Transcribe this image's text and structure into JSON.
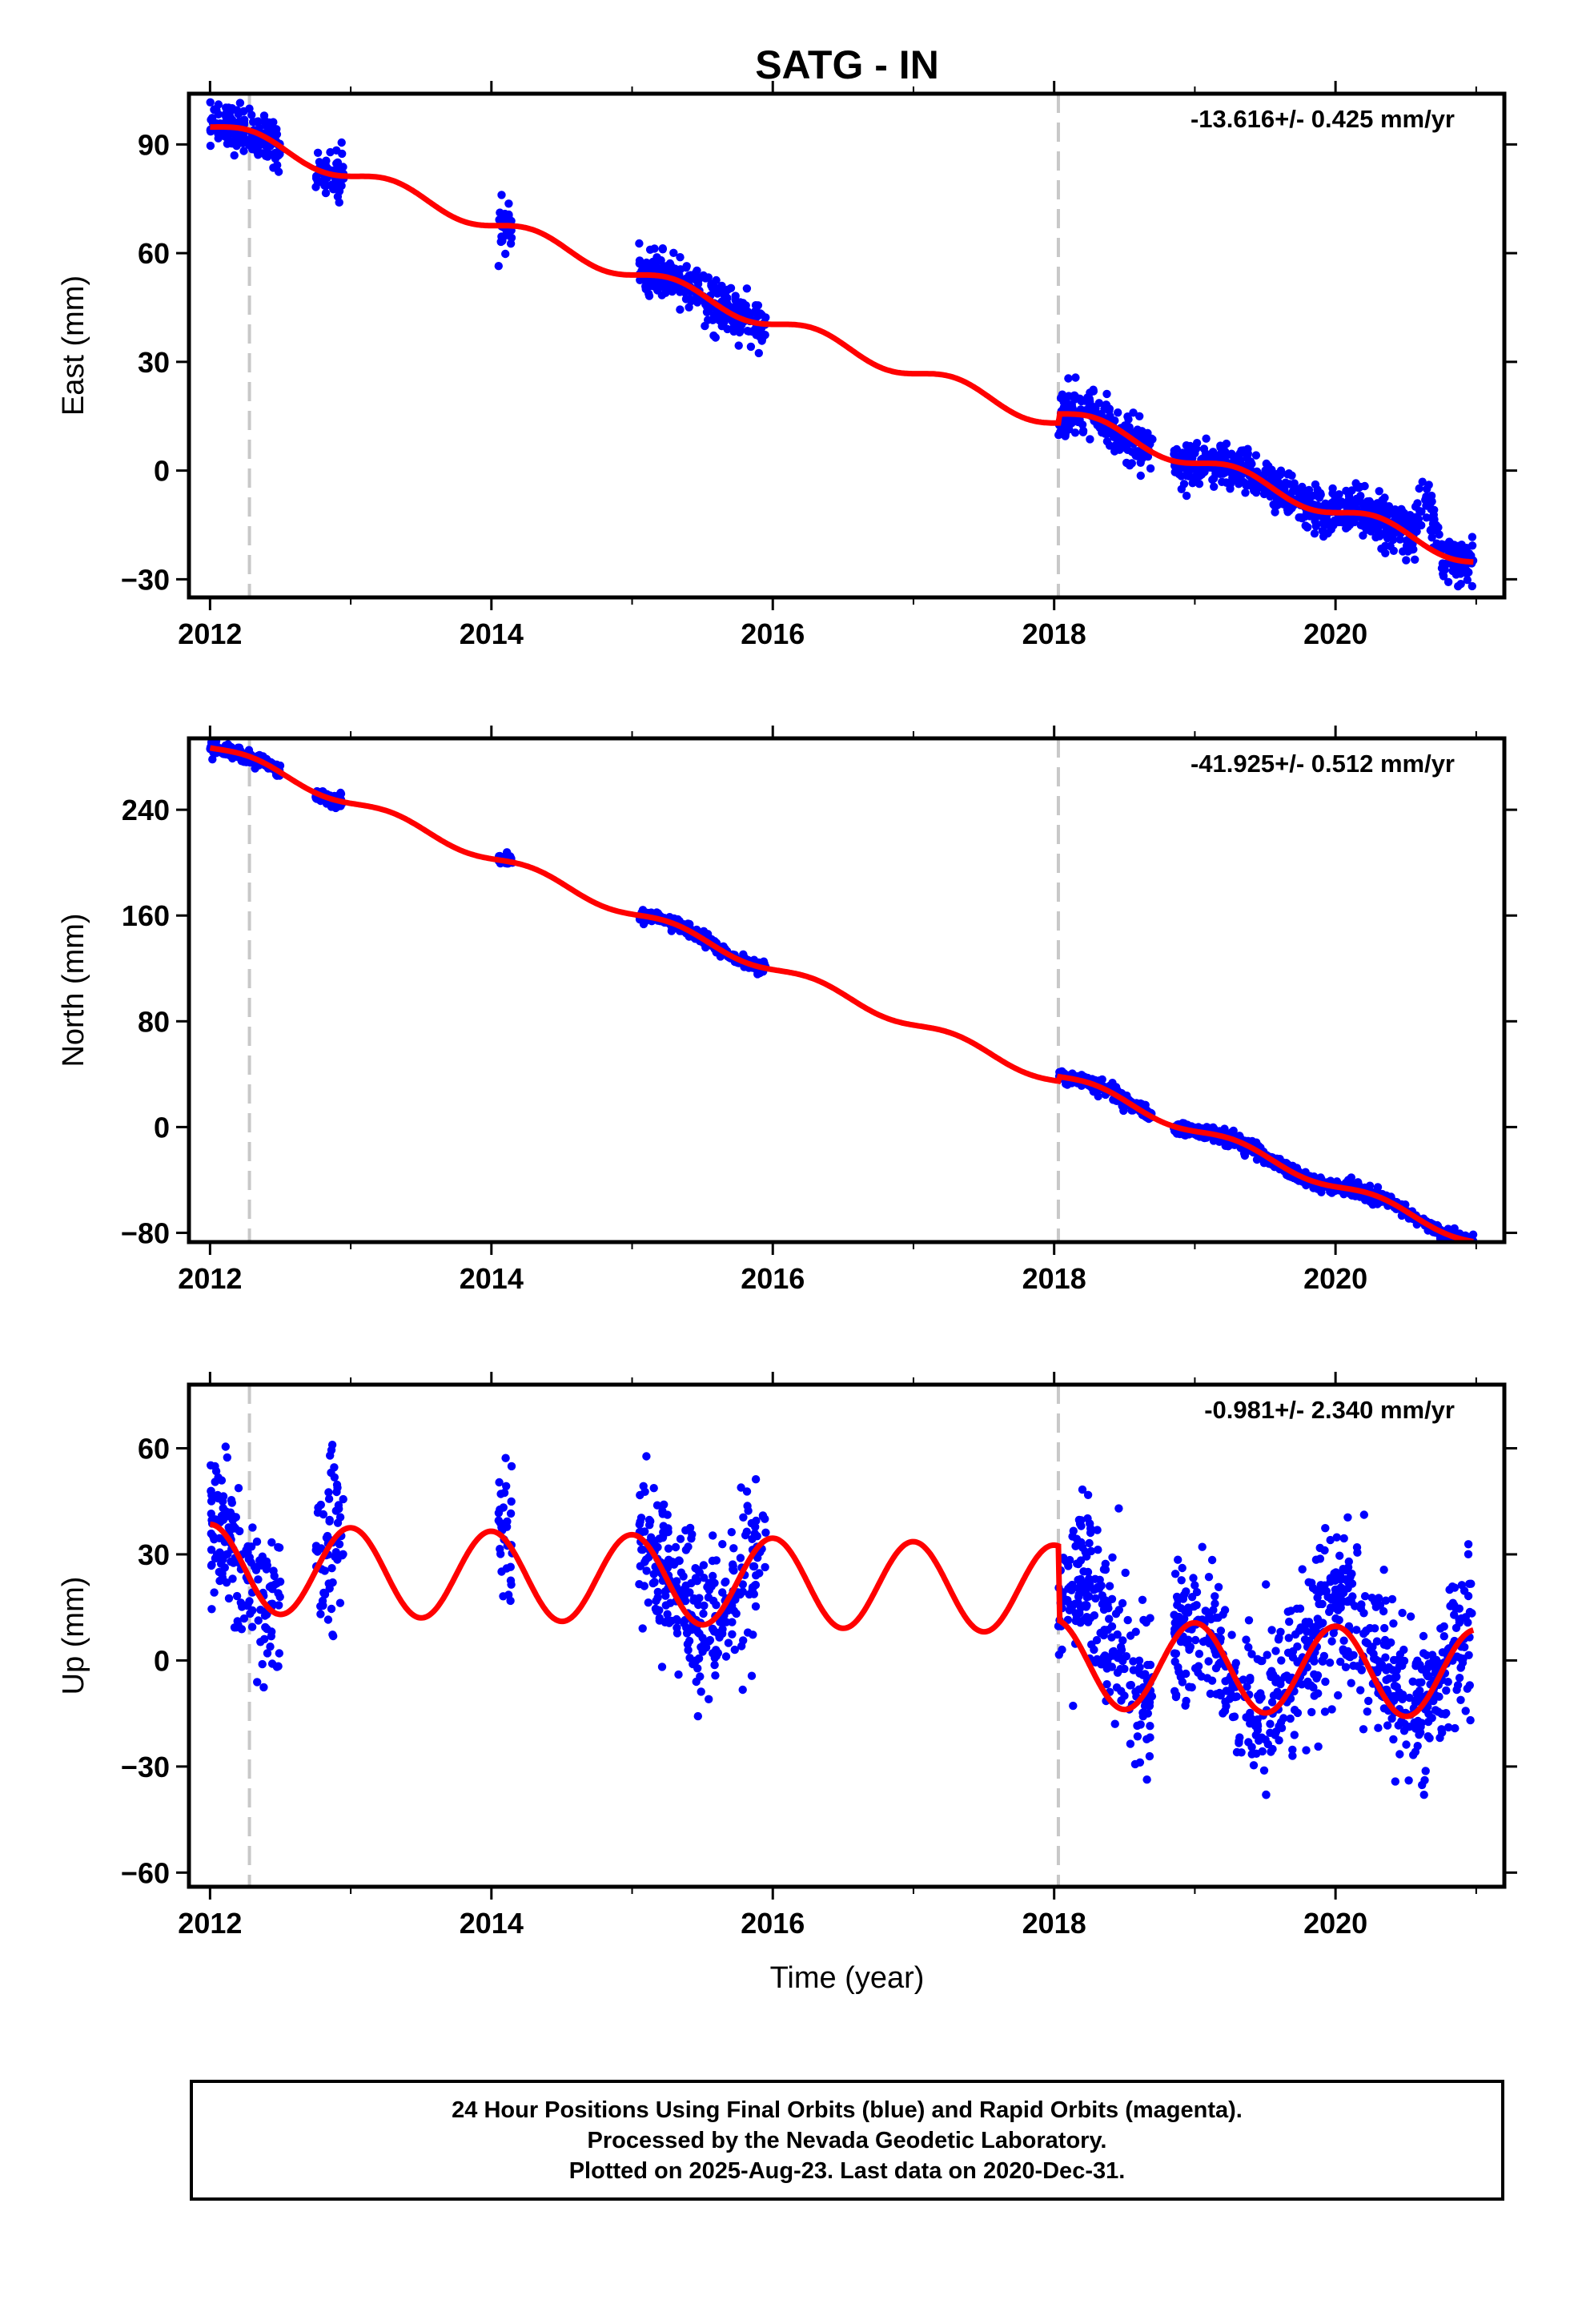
{
  "chart_data": {
    "title": "SATG - IN",
    "xlabel": "Time (year)",
    "x_ticks": [
      2012,
      2014,
      2016,
      2018,
      2020
    ],
    "xlim": [
      2011.85,
      2021.2
    ],
    "equipment_change_years": [
      2012.28,
      2018.03
    ],
    "colors": {
      "data": "#0000ff",
      "model": "#ff0000",
      "equipment_line": "#c8c8c8",
      "frame": "#000000"
    },
    "panels": [
      {
        "name": "east",
        "type": "scatter",
        "ylabel": "East (mm)",
        "rate_label": "-13.616+/- 0.425 mm/yr",
        "ylim": [
          -35,
          104
        ],
        "y_ticks": [
          -30,
          0,
          30,
          60,
          90
        ],
        "y_tick_labels": [
          "−30",
          "0",
          "30",
          "60",
          "90"
        ],
        "model": {
          "intercept": 95.5,
          "rate": -13.616,
          "annual_amp": 2.2,
          "annual_phase": 0.3,
          "offsets": [
            [
              2018.03,
              2.5
            ]
          ]
        },
        "data_segments": [
          [
            2012.0,
            2012.5
          ],
          [
            2012.75,
            2012.95
          ],
          [
            2014.05,
            2014.15
          ],
          [
            2015.05,
            2015.95
          ],
          [
            2018.03,
            2018.7
          ],
          [
            2018.85,
            2020.98
          ]
        ],
        "noise": 3.2,
        "bumps": [
          [
            2020.55,
            2020.75,
            12
          ]
        ]
      },
      {
        "name": "north",
        "type": "scatter",
        "ylabel": "North (mm)",
        "rate_label": "-41.925+/- 0.512 mm/yr",
        "ylim": [
          -87,
          294
        ],
        "y_ticks": [
          -80,
          0,
          80,
          160,
          240
        ],
        "y_tick_labels": [
          "−80",
          "0",
          "80",
          "160",
          "240"
        ],
        "model": {
          "intercept": 288,
          "rate": -41.925,
          "annual_amp": 4.0,
          "annual_phase": 0.3,
          "offsets": [
            [
              2018.03,
              3.5
            ]
          ]
        },
        "data_segments": [
          [
            2012.0,
            2012.5
          ],
          [
            2012.75,
            2012.95
          ],
          [
            2014.05,
            2014.15
          ],
          [
            2015.05,
            2015.95
          ],
          [
            2018.03,
            2018.7
          ],
          [
            2018.85,
            2020.98
          ]
        ],
        "noise": 2.5,
        "bumps": []
      },
      {
        "name": "up",
        "type": "scatter",
        "ylabel": "Up (mm)",
        "rate_label": "-0.981+/- 2.340 mm/yr",
        "ylim": [
          -64,
          78
        ],
        "y_ticks": [
          -60,
          -30,
          0,
          30,
          60
        ],
        "y_tick_labels": [
          "−60",
          "−30",
          "0",
          "30",
          "60"
        ],
        "model": {
          "intercept": 26,
          "rate": -0.981,
          "annual_amp": 12.5,
          "annual_phase": 0.0,
          "offsets": [
            [
              2018.03,
              -21
            ]
          ]
        },
        "data_segments": [
          [
            2012.0,
            2012.5
          ],
          [
            2012.75,
            2012.95
          ],
          [
            2014.05,
            2014.15
          ],
          [
            2015.05,
            2015.95
          ],
          [
            2018.03,
            2018.7
          ],
          [
            2018.85,
            2020.98
          ]
        ],
        "noise": 11,
        "bumps": [
          [
            2018.0,
            2018.6,
            22
          ],
          [
            2019.9,
            2020.6,
            8
          ]
        ]
      }
    ]
  },
  "footer": {
    "line1": "24 Hour Positions Using Final Orbits (blue) and Rapid Orbits (magenta).",
    "line2": "Processed by the Nevada Geodetic Laboratory.",
    "line3": "Plotted on 2025-Aug-23. Last data on 2020-Dec-31."
  }
}
